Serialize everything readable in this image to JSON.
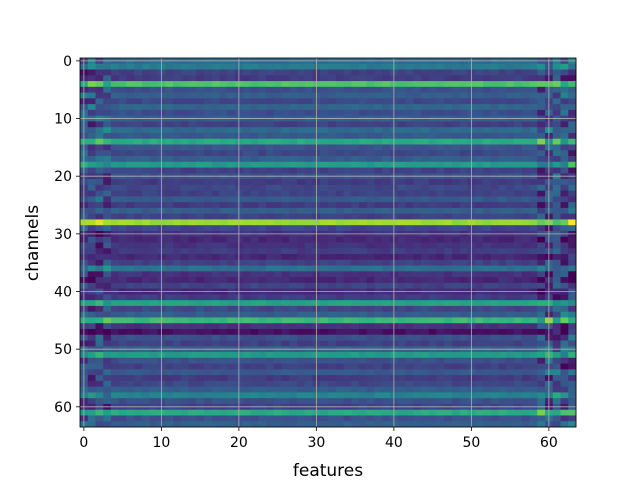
{
  "chart_data": {
    "type": "heatmap",
    "xlabel": "features",
    "ylabel": "channels",
    "x_ticks": [
      0,
      10,
      20,
      30,
      40,
      50,
      60
    ],
    "y_ticks": [
      0,
      10,
      20,
      30,
      40,
      50,
      60
    ],
    "n_features": 64,
    "n_channels": 64,
    "grid": true,
    "colormap": "viridis",
    "value_range": [
      0,
      1
    ],
    "row_base_values": [
      0.35,
      0.42,
      0.2,
      0.18,
      0.72,
      0.25,
      0.3,
      0.22,
      0.33,
      0.24,
      0.3,
      0.2,
      0.35,
      0.28,
      0.62,
      0.26,
      0.22,
      0.3,
      0.55,
      0.2,
      0.25,
      0.18,
      0.22,
      0.2,
      0.28,
      0.18,
      0.3,
      0.2,
      0.85,
      0.22,
      0.15,
      0.12,
      0.15,
      0.18,
      0.12,
      0.2,
      0.38,
      0.15,
      0.12,
      0.2,
      0.12,
      0.18,
      0.58,
      0.22,
      0.3,
      0.68,
      0.15,
      0.05,
      0.25,
      0.2,
      0.32,
      0.55,
      0.25,
      0.2,
      0.28,
      0.18,
      0.22,
      0.3,
      0.45,
      0.25,
      0.2,
      0.62,
      0.25,
      0.3
    ]
  }
}
